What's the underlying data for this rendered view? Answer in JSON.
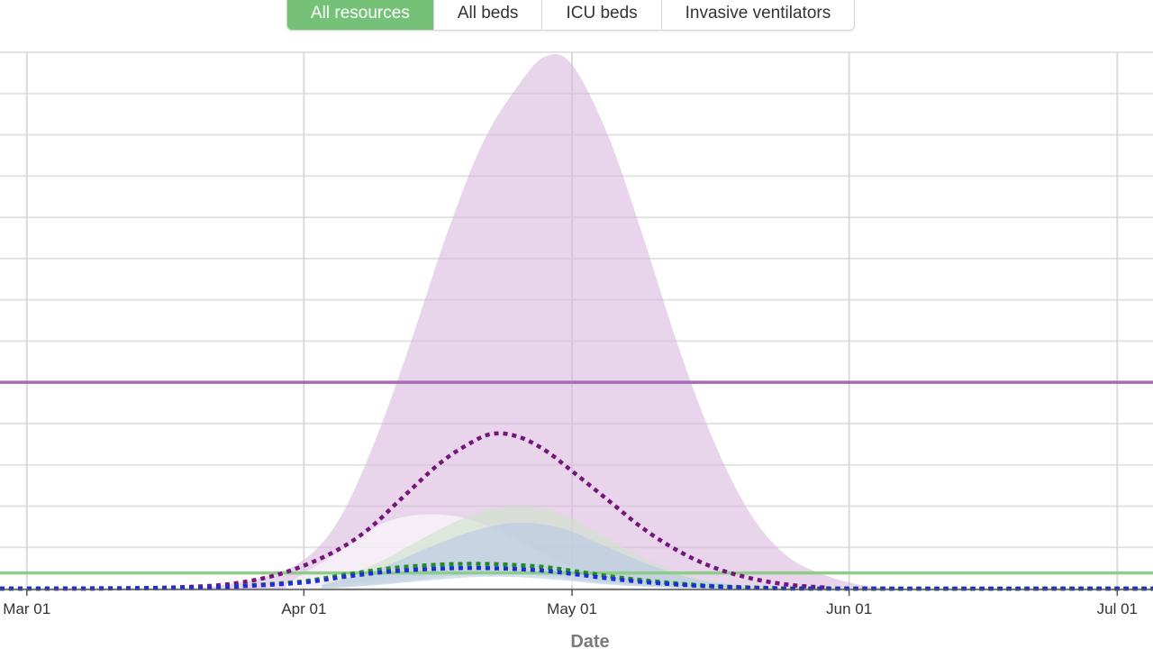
{
  "tabs": [
    {
      "label": "All resources",
      "active": true
    },
    {
      "label": "All beds",
      "active": false
    },
    {
      "label": "ICU beds",
      "active": false
    },
    {
      "label": "Invasive ventilators",
      "active": false
    }
  ],
  "chart_data": {
    "type": "area",
    "xlabel": "Date",
    "ylabel": "",
    "x_ticks": [
      {
        "date": "2020-03-01",
        "label": "Mar 01"
      },
      {
        "date": "2020-04-01",
        "label": "Apr 01"
      },
      {
        "date": "2020-05-01",
        "label": "May 01"
      },
      {
        "date": "2020-06-01",
        "label": "Jun 01"
      },
      {
        "date": "2020-07-01",
        "label": "Jul 01"
      }
    ],
    "xlim": [
      "2020-02-27",
      "2020-07-05"
    ],
    "ylim": [
      0,
      1300
    ],
    "grid": true,
    "y_tick_labels_visible": false,
    "y_grid_step": 100,
    "series": [
      {
        "kind": "band",
        "color": "#d9b8dd",
        "points": [
          [
            "2020-03-20",
            0,
            0
          ],
          [
            "2020-03-27",
            0,
            25
          ],
          [
            "2020-04-01",
            3,
            70
          ],
          [
            "2020-04-05",
            10,
            170
          ],
          [
            "2020-04-09",
            20,
            360
          ],
          [
            "2020-04-13",
            30,
            600
          ],
          [
            "2020-04-17",
            38,
            860
          ],
          [
            "2020-04-21",
            40,
            1080
          ],
          [
            "2020-04-25",
            38,
            1220
          ],
          [
            "2020-04-28",
            33,
            1290
          ],
          [
            "2020-05-01",
            25,
            1270
          ],
          [
            "2020-05-05",
            15,
            1100
          ],
          [
            "2020-05-09",
            8,
            850
          ],
          [
            "2020-05-13",
            4,
            580
          ],
          [
            "2020-05-17",
            2,
            350
          ],
          [
            "2020-05-21",
            1,
            180
          ],
          [
            "2020-05-25",
            0,
            80
          ],
          [
            "2020-05-29",
            0,
            35
          ],
          [
            "2020-06-02",
            0,
            10
          ],
          [
            "2020-06-06",
            0,
            0
          ]
        ]
      },
      {
        "kind": "band",
        "color": "#ffffff",
        "points": [
          [
            "2020-03-30",
            0,
            10
          ],
          [
            "2020-04-05",
            5,
            90
          ],
          [
            "2020-04-10",
            20,
            160
          ],
          [
            "2020-04-15",
            30,
            180
          ],
          [
            "2020-04-20",
            30,
            165
          ],
          [
            "2020-04-25",
            20,
            115
          ],
          [
            "2020-04-30",
            10,
            60
          ],
          [
            "2020-05-05",
            3,
            25
          ],
          [
            "2020-05-10",
            0,
            5
          ],
          [
            "2020-05-15",
            0,
            0
          ]
        ]
      },
      {
        "kind": "band",
        "color": "#cfe3c9",
        "points": [
          [
            "2020-04-03",
            0,
            10
          ],
          [
            "2020-04-09",
            10,
            60
          ],
          [
            "2020-04-15",
            25,
            130
          ],
          [
            "2020-04-20",
            35,
            180
          ],
          [
            "2020-04-25",
            35,
            200
          ],
          [
            "2020-04-30",
            25,
            180
          ],
          [
            "2020-05-05",
            12,
            120
          ],
          [
            "2020-05-10",
            5,
            65
          ],
          [
            "2020-05-15",
            2,
            25
          ],
          [
            "2020-05-21",
            0,
            5
          ],
          [
            "2020-05-26",
            0,
            0
          ]
        ]
      },
      {
        "kind": "band",
        "color": "#b7c9e7",
        "points": [
          [
            "2020-04-03",
            0,
            8
          ],
          [
            "2020-04-09",
            8,
            45
          ],
          [
            "2020-04-15",
            20,
            100
          ],
          [
            "2020-04-20",
            28,
            140
          ],
          [
            "2020-04-25",
            28,
            160
          ],
          [
            "2020-04-30",
            20,
            145
          ],
          [
            "2020-05-05",
            10,
            100
          ],
          [
            "2020-05-10",
            4,
            55
          ],
          [
            "2020-05-15",
            1,
            22
          ],
          [
            "2020-05-21",
            0,
            4
          ],
          [
            "2020-05-26",
            0,
            0
          ]
        ]
      },
      {
        "kind": "capacity",
        "color": "#a66bb2",
        "value": 500
      },
      {
        "kind": "capacity",
        "color": "#8fcb8b",
        "value": 38
      },
      {
        "kind": "dotted",
        "color": "#75157a",
        "points": [
          [
            "2020-02-27",
            0
          ],
          [
            "2020-03-10",
            0
          ],
          [
            "2020-03-20",
            5
          ],
          [
            "2020-03-25",
            15
          ],
          [
            "2020-03-30",
            40
          ],
          [
            "2020-04-04",
            85
          ],
          [
            "2020-04-08",
            140
          ],
          [
            "2020-04-12",
            220
          ],
          [
            "2020-04-16",
            300
          ],
          [
            "2020-04-19",
            345
          ],
          [
            "2020-04-22",
            375
          ],
          [
            "2020-04-25",
            368
          ],
          [
            "2020-04-28",
            335
          ],
          [
            "2020-05-01",
            285
          ],
          [
            "2020-05-05",
            215
          ],
          [
            "2020-05-09",
            145
          ],
          [
            "2020-05-13",
            90
          ],
          [
            "2020-05-17",
            50
          ],
          [
            "2020-05-21",
            25
          ],
          [
            "2020-05-25",
            10
          ],
          [
            "2020-05-29",
            3
          ],
          [
            "2020-06-02",
            0
          ],
          [
            "2020-07-05",
            0
          ]
        ]
      },
      {
        "kind": "dotted",
        "color": "#238a2b",
        "points": [
          [
            "2020-02-27",
            0
          ],
          [
            "2020-03-20",
            2
          ],
          [
            "2020-03-26",
            8
          ],
          [
            "2020-04-01",
            18
          ],
          [
            "2020-04-06",
            35
          ],
          [
            "2020-04-11",
            50
          ],
          [
            "2020-04-16",
            58
          ],
          [
            "2020-04-20",
            60
          ],
          [
            "2020-04-24",
            58
          ],
          [
            "2020-04-28",
            52
          ],
          [
            "2020-05-02",
            40
          ],
          [
            "2020-05-07",
            25
          ],
          [
            "2020-05-12",
            14
          ],
          [
            "2020-05-17",
            6
          ],
          [
            "2020-05-23",
            2
          ],
          [
            "2020-05-29",
            0
          ],
          [
            "2020-07-05",
            0
          ]
        ]
      },
      {
        "kind": "dotted",
        "color": "#1a2fd4",
        "points": [
          [
            "2020-02-27",
            0
          ],
          [
            "2020-03-20",
            2
          ],
          [
            "2020-03-26",
            7
          ],
          [
            "2020-04-01",
            15
          ],
          [
            "2020-04-06",
            30
          ],
          [
            "2020-04-11",
            42
          ],
          [
            "2020-04-16",
            48
          ],
          [
            "2020-04-20",
            50
          ],
          [
            "2020-04-24",
            48
          ],
          [
            "2020-04-28",
            43
          ],
          [
            "2020-05-02",
            33
          ],
          [
            "2020-05-07",
            20
          ],
          [
            "2020-05-12",
            11
          ],
          [
            "2020-05-17",
            5
          ],
          [
            "2020-05-23",
            1
          ],
          [
            "2020-05-29",
            0
          ],
          [
            "2020-07-05",
            0
          ]
        ]
      }
    ]
  }
}
